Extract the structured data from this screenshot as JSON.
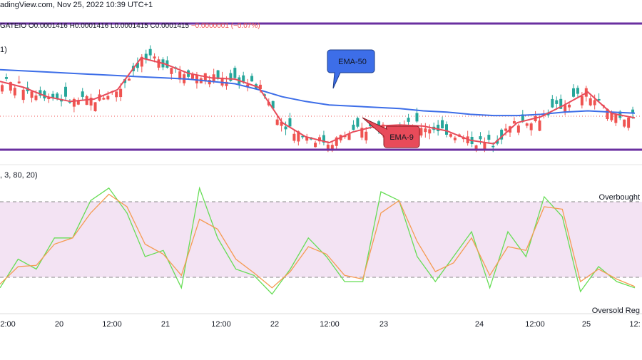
{
  "header": {
    "line1": "adingView.com, Nov 25, 2022 10:39 UTC+1",
    "ohlc": "GATEIO  O0.0001416  H0.0001416  L0.0001415  C0.0001415",
    "change": "−0.0000001 (−0.07%)",
    "price_pane_label": "1)",
    "stoch_label": ", 3, 80, 20)"
  },
  "labels": {
    "ema50": "EMA-50",
    "ema9": "EMA-9",
    "overbought": "Overbought",
    "oversold": "Oversold Reg"
  },
  "colors": {
    "ema50": "#3d6ee8",
    "ema9": "#e84b5a",
    "bull": "#26a69a",
    "bear": "#ef5350",
    "channel": "#6a2fa0",
    "stoch_k": "#66dd55",
    "stoch_d": "#f59b53",
    "band": "#f3e3f3"
  },
  "chart_data": [
    {
      "type": "line",
      "name": "price",
      "x_ticks": [
        "12:00",
        "20",
        "12:00",
        "21",
        "12:00",
        "22",
        "12:00",
        "23",
        "24",
        "12:00",
        "25",
        "12:"
      ],
      "series": [
        {
          "name": "EMA-50",
          "values": [
            0.65,
            0.64,
            0.63,
            0.62,
            0.61,
            0.6,
            0.59,
            0.58,
            0.57,
            0.55,
            0.53,
            0.48,
            0.42,
            0.38,
            0.35,
            0.34,
            0.33,
            0.32,
            0.3,
            0.29,
            0.27,
            0.26,
            0.26,
            0.27,
            0.29,
            0.3,
            0.29,
            0.28
          ]
        },
        {
          "name": "EMA-9",
          "values": [
            0.55,
            0.5,
            0.42,
            0.38,
            0.4,
            0.48,
            0.75,
            0.7,
            0.62,
            0.58,
            0.57,
            0.5,
            0.2,
            0.08,
            0.03,
            0.12,
            0.17,
            0.18,
            0.17,
            0.13,
            0.05,
            0.02,
            0.2,
            0.25,
            0.35,
            0.46,
            0.28,
            0.24
          ]
        }
      ],
      "annotations": [
        "EMA-50",
        "EMA-9"
      ]
    },
    {
      "type": "line",
      "name": "stochastic",
      "ylim": [
        0,
        100
      ],
      "levels": [
        80,
        20
      ],
      "series": [
        {
          "name": "%K",
          "values": [
            15,
            38,
            30,
            55,
            55,
            85,
            95,
            75,
            40,
            45,
            15,
            95,
            55,
            30,
            25,
            10,
            30,
            55,
            40,
            20,
            20,
            92,
            85,
            40,
            20,
            40,
            60,
            15,
            60,
            40,
            88,
            72,
            12,
            32,
            20,
            15
          ]
        },
        {
          "name": "%D",
          "values": [
            18,
            32,
            33,
            50,
            55,
            75,
            90,
            80,
            50,
            42,
            25,
            70,
            62,
            38,
            27,
            15,
            28,
            48,
            42,
            25,
            22,
            75,
            85,
            52,
            28,
            35,
            55,
            25,
            48,
            45,
            80,
            78,
            20,
            30,
            22,
            16
          ]
        }
      ]
    }
  ]
}
